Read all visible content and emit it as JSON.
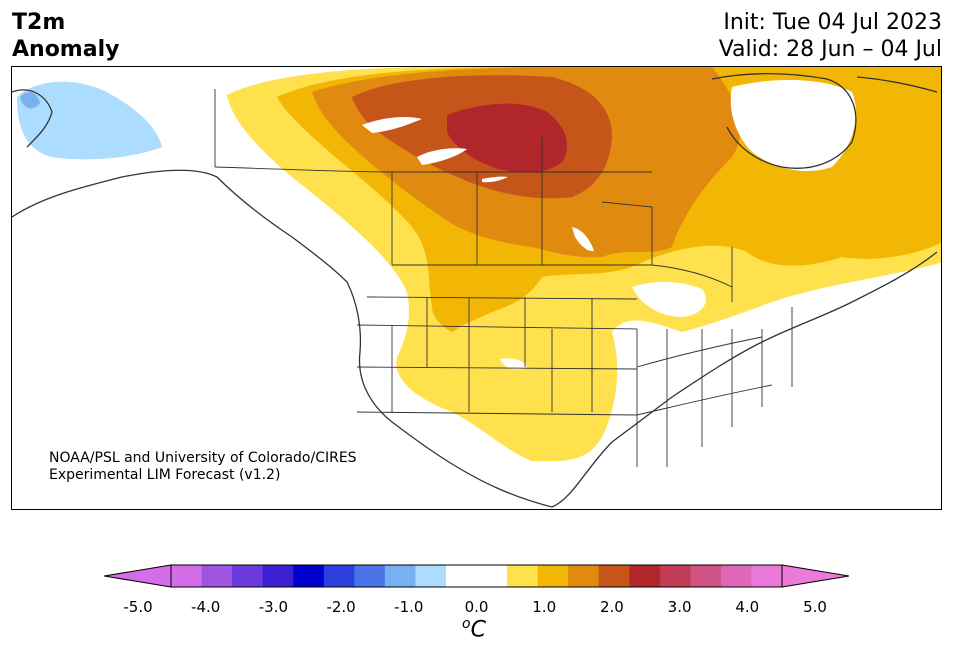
{
  "header": {
    "title_line1": "T2m",
    "title_line2": "Anomaly",
    "init_text": "Init: Tue 04 Jul 2023",
    "valid_text": "Valid: 28 Jun – 04 Jul"
  },
  "credit": {
    "line1": "NOAA/PSL and University of Colorado/CIRES",
    "line2": "Experimental LIM Forecast (v1.2)"
  },
  "colorbar": {
    "unit_base": "C",
    "unit_sup": "o",
    "ticks": [
      "-5.0",
      "-4.0",
      "-3.0",
      "-2.0",
      "-1.0",
      "0.0",
      "1.0",
      "2.0",
      "3.0",
      "4.0",
      "5.0"
    ],
    "colors": [
      "#d36ee8",
      "#9f55e1",
      "#6b3add",
      "#3a1fd3",
      "#0000cd",
      "#2a3fdb",
      "#4a74e6",
      "#78b1f2",
      "#acdcff",
      "#ffffff",
      "#ffffff",
      "#ffe14d",
      "#f2b705",
      "#e08a10",
      "#c55518",
      "#b0262a",
      "#c23b54",
      "#cf5284",
      "#de68b8",
      "#ea7ad9"
    ],
    "under_color": "#d36ee8",
    "over_color": "#ea7ad9"
  },
  "map": {
    "anomaly_colors": {
      "lightblue": "#acdcff",
      "blue": "#78b1f2",
      "yellow": "#ffe14d",
      "gold": "#f2b705",
      "orange": "#e08a10",
      "darkorange": "#c55518",
      "red": "#b0262a"
    }
  }
}
